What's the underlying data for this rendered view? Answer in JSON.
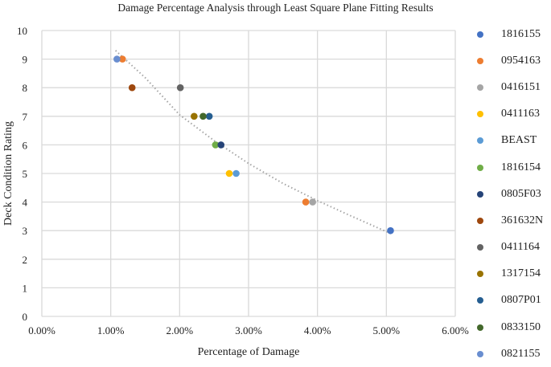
{
  "chart_data": {
    "type": "scatter",
    "title": "Damage Percentage Analysis through Least Square Plane Fitting Results",
    "xlabel": "Percentage of Damage",
    "ylabel": "Deck Condition Rating",
    "xlim": [
      0,
      6
    ],
    "ylim": [
      0,
      10
    ],
    "x_ticks": [
      "0.00%",
      "1.00%",
      "2.00%",
      "3.00%",
      "4.00%",
      "5.00%",
      "6.00%"
    ],
    "y_ticks": [
      "0",
      "1",
      "2",
      "3",
      "4",
      "5",
      "6",
      "7",
      "8",
      "9",
      "10"
    ],
    "grid": true,
    "legend_position": "right",
    "trendline": {
      "style": "dotted",
      "color": "#a6a6a6",
      "type": "polynomial",
      "x_range": [
        1.07,
        5.08
      ],
      "points": [
        [
          1.07,
          9.3
        ],
        [
          1.5,
          8.35
        ],
        [
          2.0,
          7.05
        ],
        [
          2.5,
          6.15
        ],
        [
          3.0,
          5.35
        ],
        [
          3.5,
          4.65
        ],
        [
          4.0,
          4.05
        ],
        [
          4.5,
          3.5
        ],
        [
          5.08,
          2.88
        ]
      ]
    },
    "series": [
      {
        "name": "1816155",
        "color": "#4472c4",
        "points": [
          [
            5.06,
            3
          ]
        ]
      },
      {
        "name": "0954163",
        "color": "#ed7d31",
        "points": [
          [
            1.17,
            9
          ],
          [
            3.83,
            4
          ]
        ]
      },
      {
        "name": "0416151",
        "color": "#a5a5a5",
        "points": [
          [
            3.93,
            4
          ]
        ]
      },
      {
        "name": "0411163",
        "color": "#ffc000",
        "points": [
          [
            2.72,
            5
          ]
        ]
      },
      {
        "name": "BEAST",
        "color": "#5b9bd5",
        "points": [
          [
            2.82,
            5
          ]
        ]
      },
      {
        "name": "1816154",
        "color": "#70ad47",
        "points": [
          [
            2.52,
            6
          ]
        ]
      },
      {
        "name": "0805F03",
        "color": "#264478",
        "points": [
          [
            2.6,
            6
          ]
        ]
      },
      {
        "name": "361632N",
        "color": "#9e480e",
        "points": [
          [
            1.31,
            8
          ]
        ]
      },
      {
        "name": "0411164",
        "color": "#636363",
        "points": [
          [
            2.01,
            8
          ]
        ]
      },
      {
        "name": "1317154",
        "color": "#997300",
        "points": [
          [
            2.21,
            7
          ]
        ]
      },
      {
        "name": "0807P01",
        "color": "#255e91",
        "points": [
          [
            2.43,
            7
          ]
        ]
      },
      {
        "name": "0833150",
        "color": "#43682b",
        "points": [
          [
            2.34,
            7
          ]
        ]
      },
      {
        "name": "0821155",
        "color": "#698ed0",
        "points": [
          [
            1.09,
            9
          ]
        ]
      }
    ]
  }
}
